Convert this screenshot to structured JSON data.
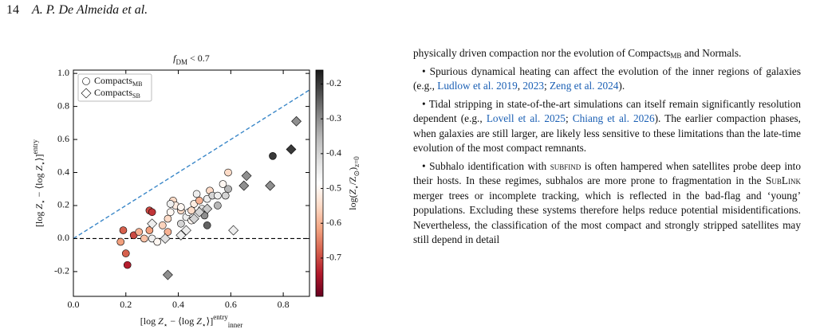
{
  "header": {
    "page_number": "14",
    "authors": "A. P. De Almeida et al."
  },
  "chart_data": {
    "type": "scatter",
    "title": [
      {
        "text": "f",
        "italic": true
      },
      {
        "text": "DM",
        "sub": true
      },
      {
        "text": " < 0.7"
      }
    ],
    "x_label": [
      {
        "text": "[log "
      },
      {
        "text": "Z",
        "italic": true
      },
      {
        "text": "⋆",
        "sub": true
      },
      {
        "text": " − ⟨log "
      },
      {
        "text": "Z",
        "italic": true
      },
      {
        "text": "⋆",
        "sub": true
      },
      {
        "text": "⟩]"
      },
      {
        "text": "entry",
        "sup": true
      },
      {
        "text": "inner",
        "sub": true
      }
    ],
    "y_label": [
      {
        "text": "[log "
      },
      {
        "text": "Z",
        "italic": true
      },
      {
        "text": "⋆",
        "sub": true
      },
      {
        "text": " − ⟨log "
      },
      {
        "text": "Z",
        "italic": true
      },
      {
        "text": "⋆",
        "sub": true
      },
      {
        "text": "⟩]"
      },
      {
        "text": "entry",
        "sup": true
      }
    ],
    "xlim": [
      0,
      0.9
    ],
    "xticks": [
      {
        "value": 0,
        "label": "0.0"
      },
      0.2,
      0.4,
      0.6,
      0.8
    ],
    "ylim": [
      -0.35,
      1.02
    ],
    "yticks": [
      -0.2,
      {
        "value": 0,
        "label": "0.0"
      },
      0.2,
      0.4,
      0.6,
      0.8,
      {
        "value": 1,
        "label": "1.0"
      }
    ],
    "hline": 0,
    "identity_line": true,
    "identity_color": "#3a87c8",
    "legend": "upper left",
    "colorbar": {
      "label": [
        {
          "text": "log("
        },
        {
          "text": "Z",
          "italic": true
        },
        {
          "text": "⋆",
          "sub": true
        },
        {
          "text": "/Z"
        },
        {
          "text": "⊙",
          "sub": true
        },
        {
          "text": ")"
        },
        {
          "text": "z=0",
          "sub": true
        }
      ],
      "lim": [
        -0.81,
        -0.16
      ],
      "ticks": [
        -0.7,
        -0.6,
        -0.5,
        -0.4,
        -0.3,
        -0.2
      ],
      "colors": [
        "#67001f",
        "#b2182b",
        "#d6604d",
        "#f4a582",
        "#fddbc7",
        "#ffffff",
        "#e0e0e0",
        "#bababa",
        "#878787",
        "#4d4d4d",
        "#1a1a1a"
      ]
    },
    "series": [
      {
        "name": "Compacts",
        "name_sub": "MB",
        "marker": "circle",
        "x": [
          0.18,
          0.2,
          0.206,
          0.19,
          0.23,
          0.25,
          0.27,
          0.29,
          0.3,
          0.3,
          0.32,
          0.34,
          0.36,
          0.36,
          0.37,
          0.38,
          0.39,
          0.41,
          0.41,
          0.43,
          0.44,
          0.45,
          0.46,
          0.47,
          0.48,
          0.49,
          0.5,
          0.51,
          0.52,
          0.53,
          0.55,
          0.55,
          0.57,
          0.58,
          0.59,
          0.59,
          0.51,
          0.41,
          0.45,
          0.76,
          0.37,
          0.29
        ],
        "values": [
          -0.02,
          -0.09,
          -0.16,
          0.05,
          0.02,
          0.04,
          0.0,
          0.17,
          0.16,
          0.0,
          -0.02,
          0.08,
          0.04,
          0.12,
          0.16,
          0.23,
          0.2,
          0.17,
          0.09,
          0.13,
          0.16,
          0.11,
          0.21,
          0.27,
          0.23,
          0.18,
          0.14,
          0.24,
          0.29,
          0.26,
          0.2,
          0.26,
          0.33,
          0.26,
          0.4,
          0.3,
          0.08,
          0.19,
          0.17,
          0.5,
          0.21,
          0.05
        ],
        "c": [
          -0.62,
          -0.68,
          -0.74,
          -0.68,
          -0.7,
          -0.6,
          -0.58,
          -0.7,
          -0.72,
          -0.45,
          -0.5,
          -0.56,
          -0.6,
          -0.55,
          -0.5,
          -0.55,
          -0.52,
          -0.55,
          -0.4,
          -0.45,
          -0.48,
          -0.5,
          -0.52,
          -0.45,
          -0.6,
          -0.42,
          -0.3,
          -0.45,
          -0.55,
          -0.4,
          -0.35,
          -0.45,
          -0.5,
          -0.4,
          -0.55,
          -0.35,
          -0.25,
          -0.5,
          -0.55,
          -0.2,
          -0.45,
          -0.62
        ]
      },
      {
        "name": "Compacts",
        "name_sub": "SB",
        "marker": "diamond",
        "x": [
          0.3,
          0.35,
          0.41,
          0.43,
          0.46,
          0.48,
          0.51,
          0.61,
          0.36,
          0.66,
          0.65,
          0.75,
          0.83,
          0.85
        ],
        "values": [
          0.09,
          0.0,
          0.02,
          0.05,
          0.12,
          0.16,
          0.18,
          0.05,
          -0.22,
          0.38,
          0.32,
          0.32,
          0.54,
          0.71
        ],
        "c": [
          -0.45,
          -0.42,
          -0.45,
          -0.45,
          -0.4,
          -0.4,
          -0.38,
          -0.45,
          -0.3,
          -0.3,
          -0.3,
          -0.3,
          -0.2,
          -0.3
        ]
      }
    ]
  },
  "body": {
    "paragraphs": [
      [
        {
          "text": "physically driven compaction nor the evolution of Compacts"
        },
        {
          "text": "MB",
          "sub": true
        },
        {
          "text": " and Normals."
        }
      ],
      [
        {
          "text": "• Spurious dynamical heating can affect the evolution of the inner regions of galaxies (e.g., "
        },
        {
          "text": "Ludlow et al. 2019",
          "link": true
        },
        {
          "text": ", "
        },
        {
          "text": "2023",
          "link": true
        },
        {
          "text": "; "
        },
        {
          "text": "Zeng et al. 2024",
          "link": true
        },
        {
          "text": ")."
        }
      ],
      [
        {
          "text": "• Tidal stripping in state-of-the-art simulations can itself remain significantly resolution dependent (e.g., "
        },
        {
          "text": "Lovell et al. 2025",
          "link": true
        },
        {
          "text": "; "
        },
        {
          "text": "Chiang et al. 2026",
          "link": true
        },
        {
          "text": "). The earlier compaction phases, when galaxies are still larger, are likely less sensitive to these limitations than the late-time evolution of the most compact remnants."
        }
      ],
      [
        {
          "text": "• Subhalo identification with "
        },
        {
          "text": "subfind",
          "smallcaps": true
        },
        {
          "text": " is often hampered when satellites probe deep into their hosts. In these regimes, subhalos are more prone to fragmentation in the "
        },
        {
          "text": "SubLink",
          "smallcaps": true
        },
        {
          "text": " merger trees or incomplete tracking, which is reflected in the bad-flag and ‘young’ populations. Excluding these systems therefore helps reduce potential misidentifications. Nevertheless, the classification of the most compact and strongly stripped satellites may still depend in detail"
        }
      ]
    ]
  }
}
